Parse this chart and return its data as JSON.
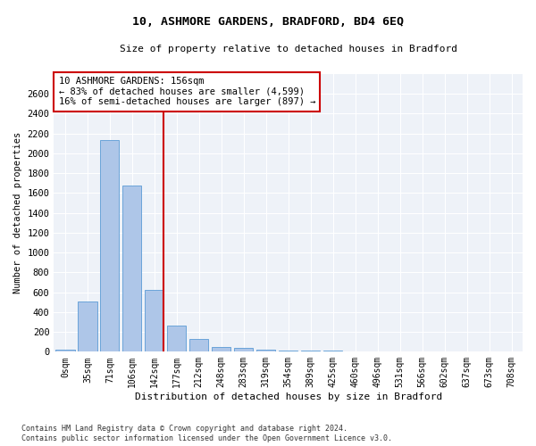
{
  "title": "10, ASHMORE GARDENS, BRADFORD, BD4 6EQ",
  "subtitle": "Size of property relative to detached houses in Bradford",
  "xlabel": "Distribution of detached houses by size in Bradford",
  "ylabel": "Number of detached properties",
  "categories": [
    "0sqm",
    "35sqm",
    "71sqm",
    "106sqm",
    "142sqm",
    "177sqm",
    "212sqm",
    "248sqm",
    "283sqm",
    "319sqm",
    "354sqm",
    "389sqm",
    "425sqm",
    "460sqm",
    "496sqm",
    "531sqm",
    "566sqm",
    "602sqm",
    "637sqm",
    "673sqm",
    "708sqm"
  ],
  "values": [
    20,
    510,
    2130,
    1680,
    620,
    260,
    125,
    50,
    35,
    25,
    15,
    8,
    8,
    5,
    3,
    2,
    2,
    2,
    2,
    1,
    1
  ],
  "bar_color": "#aec6e8",
  "bar_edge_color": "#5b9bd5",
  "marker_bin_index": 4,
  "marker_color": "#cc0000",
  "annotation_text": "10 ASHMORE GARDENS: 156sqm\n← 83% of detached houses are smaller (4,599)\n16% of semi-detached houses are larger (897) →",
  "annotation_box_color": "#ffffff",
  "annotation_box_edge": "#cc0000",
  "ylim": [
    0,
    2800
  ],
  "yticks": [
    0,
    200,
    400,
    600,
    800,
    1000,
    1200,
    1400,
    1600,
    1800,
    2000,
    2200,
    2400,
    2600
  ],
  "footer_line1": "Contains HM Land Registry data © Crown copyright and database right 2024.",
  "footer_line2": "Contains public sector information licensed under the Open Government Licence v3.0.",
  "bg_color": "#eef2f8",
  "grid_color": "#ffffff",
  "fig_bg_color": "#ffffff"
}
